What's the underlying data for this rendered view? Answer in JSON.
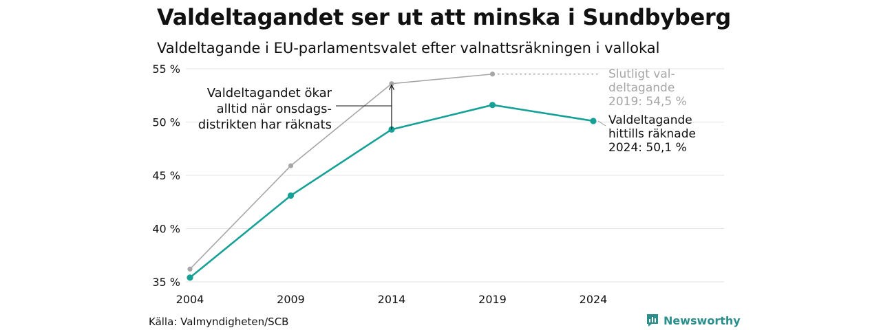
{
  "title": "Valdeltagandet ser ut att minska i Sundbyberg",
  "subtitle": "Valdeltagande i EU-parlamentsvalet efter valnattsräkningen i vallokal",
  "source": "Källa: Valmyndigheten/SCB",
  "brand": {
    "name": "Newsworthy",
    "icon": "newsworthy-logo-icon"
  },
  "colors": {
    "teal": "#16a196",
    "gray": "#a6a6a6",
    "grid": "#e3e3e3",
    "text": "#111111"
  },
  "chart_data": {
    "type": "line",
    "x": [
      2004,
      2009,
      2014,
      2019,
      2024
    ],
    "xticks": [
      "2004",
      "2009",
      "2014",
      "2019",
      "2024"
    ],
    "ylim": [
      35,
      55
    ],
    "yticks": [
      35,
      40,
      45,
      50,
      55
    ],
    "ytick_labels": [
      "35 %",
      "40 %",
      "45 %",
      "50 %",
      "55 %"
    ],
    "grid": true,
    "series": [
      {
        "key": "final",
        "values": [
          36.2,
          45.9,
          53.6,
          54.5,
          null
        ],
        "color": "#a6a6a6"
      },
      {
        "key": "counted",
        "values": [
          35.4,
          43.1,
          49.3,
          51.6,
          50.1
        ],
        "color": "#16a196"
      }
    ],
    "annotations": [
      {
        "key": "final_label",
        "lines": [
          "Slutligt val-",
          "deltagande",
          "2019: 54,5 %"
        ],
        "anchor_x": 2019,
        "anchor_y": 54.5,
        "color": "#a6a6a6"
      },
      {
        "key": "counted_label",
        "lines": [
          "Valdeltagande",
          "hittills räknade",
          "2024: 50,1 %"
        ],
        "anchor_x": 2024,
        "anchor_y": 50.1,
        "color": "#111111"
      },
      {
        "key": "gap_note",
        "lines": [
          "Valdeltagandet ökar",
          "alltid när onsdags-",
          "distrikten har räknats"
        ],
        "anchor_x": 2014,
        "from_y": 49.3,
        "to_y": 53.6,
        "color": "#111111"
      }
    ]
  }
}
